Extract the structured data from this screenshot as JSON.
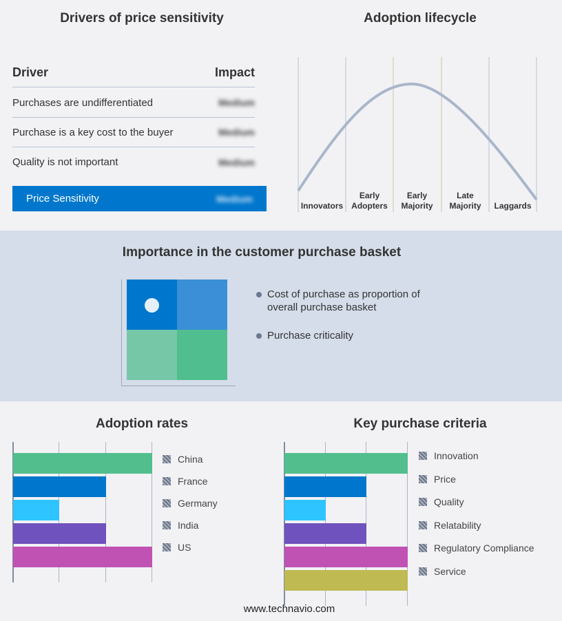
{
  "drivers": {
    "title": "Drivers of price sensitivity",
    "col_driver": "Driver",
    "col_impact": "Impact",
    "rows": [
      {
        "driver": "Purchases are undifferentiated",
        "impact": "Medium"
      },
      {
        "driver": "Purchase is a key cost to the buyer",
        "impact": "Medium"
      },
      {
        "driver": "Quality is not important",
        "impact": "Medium"
      }
    ],
    "summary": {
      "label": "Price Sensitivity",
      "impact": "Medium"
    },
    "accent": "#0077cc"
  },
  "lifecycle": {
    "title": "Adoption lifecycle",
    "stages": [
      [
        "Innovators"
      ],
      [
        "Early",
        "Adopters"
      ],
      [
        "Early",
        "Majority"
      ],
      [
        "Late",
        "Majority"
      ],
      [
        "Laggards"
      ]
    ]
  },
  "basket": {
    "title": "Importance in the customer purchase basket",
    "legend": [
      "Cost of purchase as proportion of overall purchase basket",
      "Purchase criticality"
    ],
    "colors": [
      "#0077cc",
      "#3a8fd6",
      "#76c6a8",
      "#50be8e"
    ]
  },
  "chart_data": [
    {
      "type": "bar",
      "orientation": "horizontal",
      "title": "Adoption rates",
      "categories": [
        "China",
        "France",
        "Germany",
        "India",
        "US"
      ],
      "values": [
        3,
        2,
        1,
        2,
        3
      ],
      "xlim": [
        0,
        3
      ],
      "grid": true,
      "legend": "right",
      "colors": [
        "#52be8e",
        "#0077cc",
        "#2ec4ff",
        "#6f52bd",
        "#c052b4"
      ]
    },
    {
      "type": "bar",
      "orientation": "horizontal",
      "title": "Key purchase criteria",
      "categories": [
        "Innovation",
        "Price",
        "Quality",
        "Relatability",
        "Regulatory Compliance",
        "Service"
      ],
      "values": [
        3,
        2,
        1,
        2,
        3,
        3
      ],
      "xlim": [
        0,
        3
      ],
      "grid": true,
      "legend": "right",
      "colors": [
        "#52be8e",
        "#0077cc",
        "#2ec4ff",
        "#6f52bd",
        "#c052b4",
        "#bfba52"
      ]
    }
  ],
  "footer": "www.technavio.com"
}
